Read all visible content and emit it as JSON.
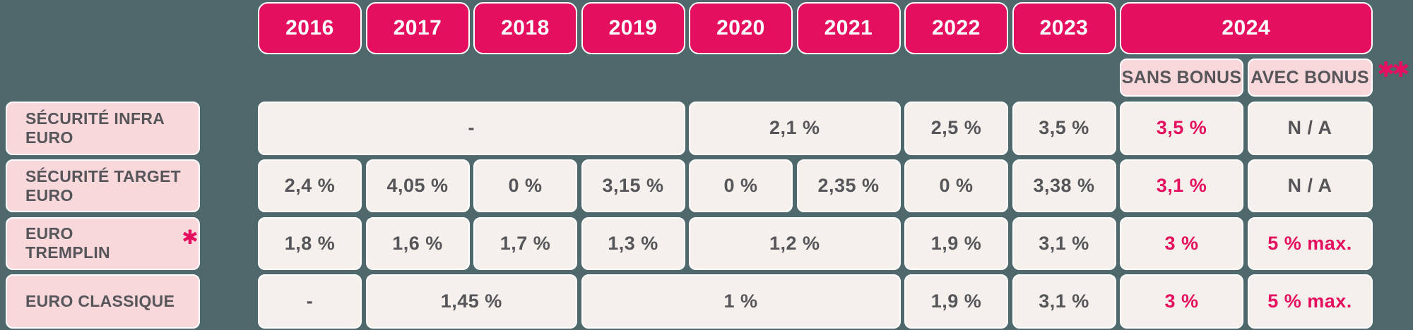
{
  "colors": {
    "background_teal": "#4E686C",
    "accent_crimson": "#E4105F",
    "label_pink": "#F8D8DB",
    "cell_offwhite": "#F5F0EB",
    "text_dark_gray": "#56555A",
    "border_white": "#FFFFFF"
  },
  "header": {
    "years": [
      "2016",
      "2017",
      "2018",
      "2019",
      "2020",
      "2021",
      "2022",
      "2023",
      "2024"
    ],
    "bonus_columns": {
      "sans": "SANS BONUS",
      "avec": "AVEC BONUS"
    },
    "footnote_marker": "✱✱"
  },
  "rows": [
    {
      "label": "SÉCURITÉ INFRA EURO",
      "cells": [
        {
          "value": "-",
          "years": "2016-2019"
        },
        {
          "value": "2,1 %",
          "years": "2020-2021"
        },
        {
          "value": "2,5 %",
          "years": "2022"
        },
        {
          "value": "3,5 %",
          "years": "2023"
        },
        {
          "value": "3,5 %",
          "years": "2024 SANS BONUS",
          "highlight": true
        },
        {
          "value": "N / A",
          "years": "2024 AVEC BONUS"
        }
      ]
    },
    {
      "label": "SÉCURITÉ TARGET EURO",
      "cells": [
        {
          "value": "2,4 %",
          "years": "2016"
        },
        {
          "value": "4,05 %",
          "years": "2017"
        },
        {
          "value": "0 %",
          "years": "2018"
        },
        {
          "value": "3,15 %",
          "years": "2019"
        },
        {
          "value": "0 %",
          "years": "2020"
        },
        {
          "value": "2,35 %",
          "years": "2021"
        },
        {
          "value": "0 %",
          "years": "2022"
        },
        {
          "value": "3,38 %",
          "years": "2023"
        },
        {
          "value": "3,1 %",
          "years": "2024 SANS BONUS",
          "highlight": true
        },
        {
          "value": "N / A",
          "years": "2024 AVEC BONUS"
        }
      ]
    },
    {
      "label": "EURO TREMPLIN",
      "label_marker": "✱",
      "cells": [
        {
          "value": "1,8 %",
          "years": "2016"
        },
        {
          "value": "1,6 %",
          "years": "2017"
        },
        {
          "value": "1,7 %",
          "years": "2018"
        },
        {
          "value": "1,3 %",
          "years": "2019"
        },
        {
          "value": "1,2 %",
          "years": "2020-2021"
        },
        {
          "value": "1,9 %",
          "years": "2022"
        },
        {
          "value": "3,1 %",
          "years": "2023"
        },
        {
          "value": "3 %",
          "years": "2024 SANS BONUS",
          "highlight": true
        },
        {
          "value": "5 % max.",
          "years": "2024 AVEC BONUS",
          "highlight": true
        }
      ]
    },
    {
      "label": "EURO CLASSIQUE",
      "cells": [
        {
          "value": "-",
          "years": "2016"
        },
        {
          "value": "1,45 %",
          "years": "2017-2018"
        },
        {
          "value": "1 %",
          "years": "2019-2021"
        },
        {
          "value": "1,9 %",
          "years": "2022"
        },
        {
          "value": "3,1 %",
          "years": "2023"
        },
        {
          "value": "3 %",
          "years": "2024 SANS BONUS",
          "highlight": true
        },
        {
          "value": "5 % max.",
          "years": "2024 AVEC BONUS",
          "highlight": true
        }
      ]
    }
  ],
  "chart_data": {
    "type": "table",
    "columns": [
      "2016",
      "2017",
      "2018",
      "2019",
      "2020",
      "2021",
      "2022",
      "2023",
      "2024 SANS BONUS",
      "2024 AVEC BONUS"
    ],
    "rows": [
      {
        "label": "SÉCURITÉ INFRA EURO",
        "values": [
          "-",
          "-",
          "-",
          "-",
          "2,1 %",
          "2,1 %",
          "2,5 %",
          "3,5 %",
          "3,5 %",
          "N / A"
        ]
      },
      {
        "label": "SÉCURITÉ TARGET EURO",
        "values": [
          "2,4 %",
          "4,05 %",
          "0 %",
          "3,15 %",
          "0 %",
          "2,35 %",
          "0 %",
          "3,38 %",
          "3,1 %",
          "N / A"
        ]
      },
      {
        "label": "EURO TREMPLIN ✱",
        "values": [
          "1,8 %",
          "1,6 %",
          "1,7 %",
          "1,3 %",
          "1,2 %",
          "1,2 %",
          "1,9 %",
          "3,1 %",
          "3 %",
          "5 % max."
        ]
      },
      {
        "label": "EURO CLASSIQUE",
        "values": [
          "-",
          "1,45 %",
          "1,45 %",
          "1 %",
          "1 %",
          "1 %",
          "1,9 %",
          "3,1 %",
          "3 %",
          "5 % max."
        ]
      }
    ]
  }
}
